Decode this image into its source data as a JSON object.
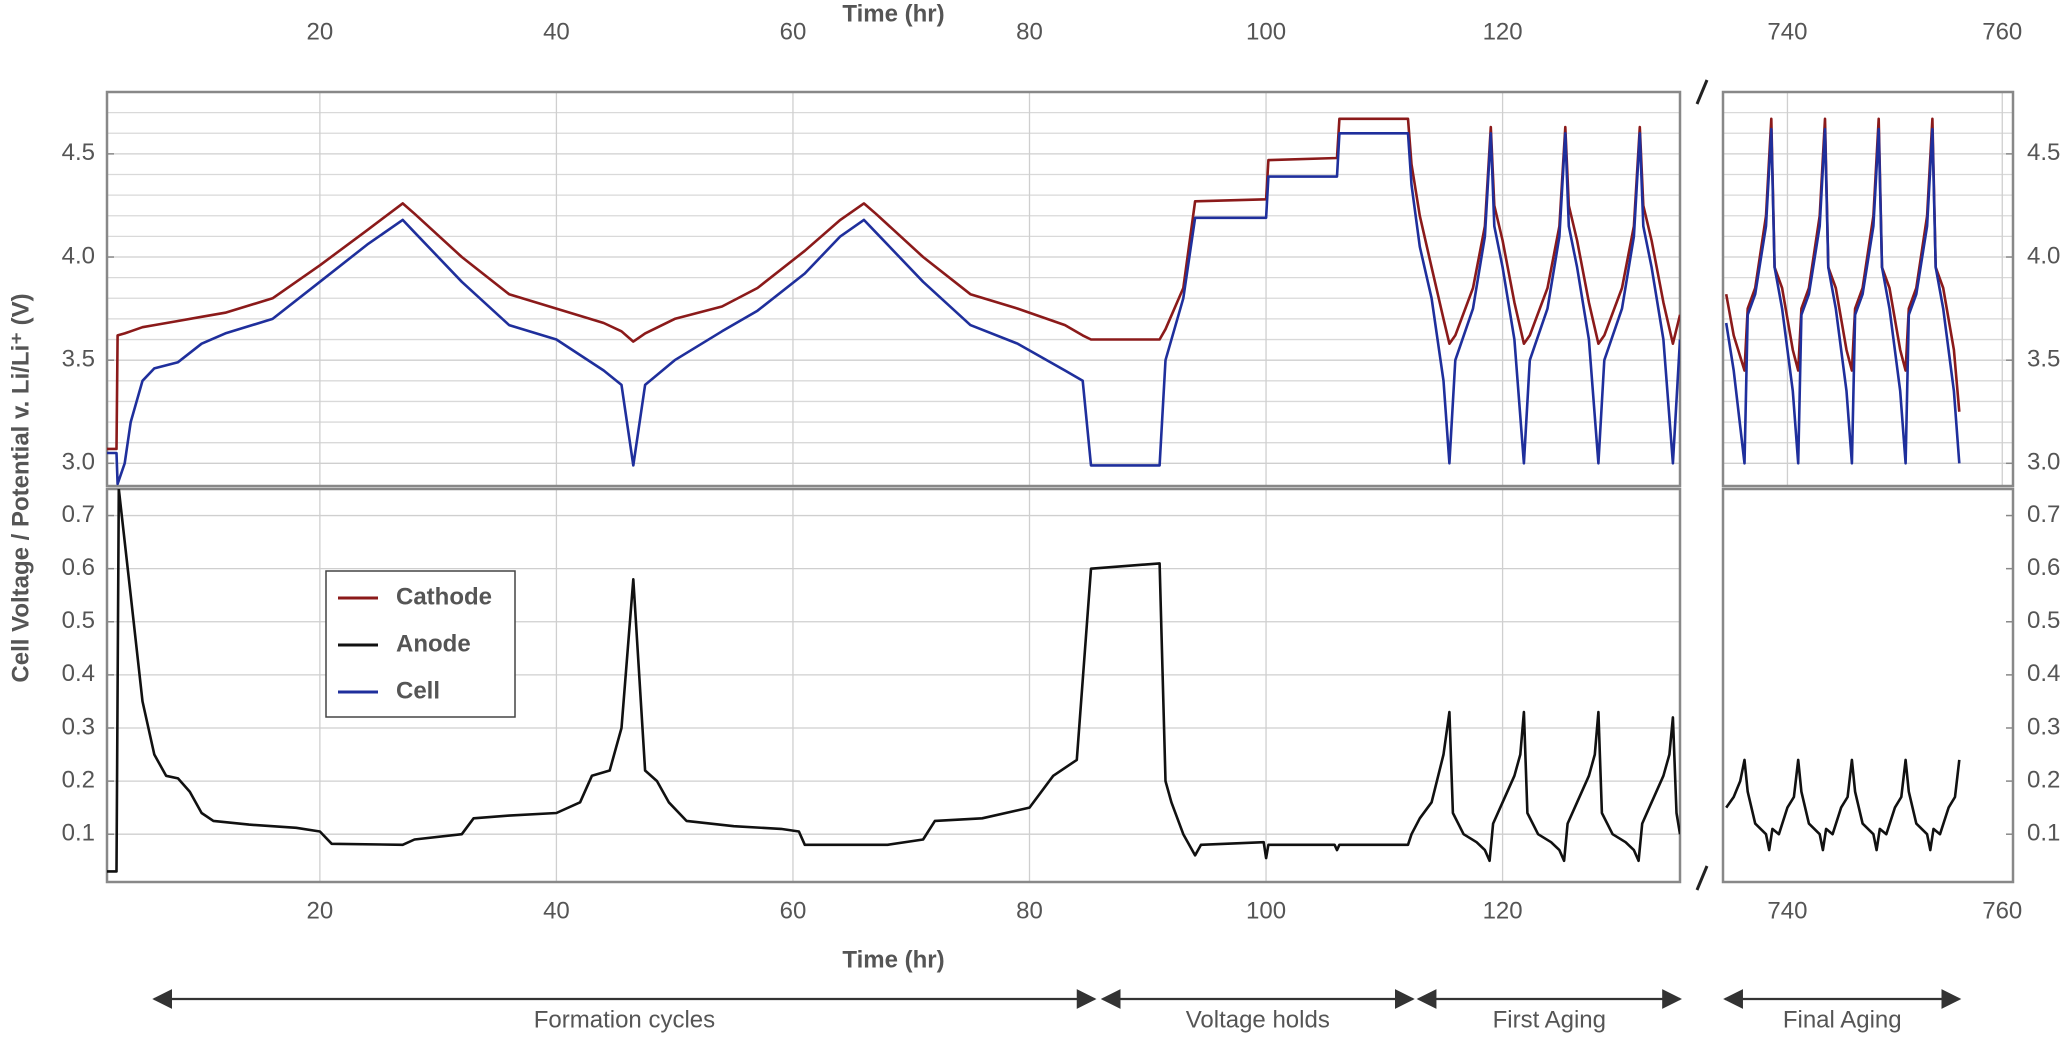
{
  "chart_data": [
    {
      "type": "line",
      "xlabel": "Time (hr)",
      "xaxis_position": "top",
      "yaxis_position": "left",
      "ylabel": "Cell Voltage / Potential v. Li/Li⁺ (V)",
      "xlim": [
        2,
        135
      ],
      "ylim": [
        2.89,
        4.8
      ],
      "xticks": [
        20,
        40,
        60,
        80,
        100,
        120
      ],
      "yticks": [
        {
          "value": 3,
          "label": "3.0"
        },
        3.5,
        {
          "value": 4,
          "label": "4.0"
        },
        4.5
      ],
      "minor_yticks": [
        3.1,
        3.2,
        3.3,
        3.4,
        3.6,
        3.7,
        3.8,
        3.9,
        4.1,
        4.2,
        4.3,
        4.4,
        4.6,
        4.7
      ],
      "grid": true,
      "x": [
        2,
        2.8,
        2.9,
        3.5,
        4,
        5,
        6,
        8,
        10,
        12,
        16,
        20,
        24,
        27,
        28,
        32,
        36,
        40,
        44,
        45.5,
        46.5,
        47.5,
        50,
        54,
        57,
        61,
        64,
        66,
        67,
        71,
        75,
        79,
        83,
        84.5,
        85.2,
        91,
        91.5,
        93,
        94,
        100,
        100.2,
        106,
        106.2,
        112,
        112.3,
        113,
        114,
        115,
        115.5,
        116,
        117.5,
        118.5,
        119,
        119.3,
        120,
        121,
        121.8,
        122.3,
        123.8,
        124.8,
        125.3,
        125.6,
        126.3,
        127.3,
        128.1,
        128.6,
        130.1,
        131.1,
        131.6,
        131.9,
        132.6,
        133.6,
        134.4,
        135
      ],
      "series": [
        {
          "name": "Cathode",
          "color": "#8b1a1a",
          "values": [
            3.07,
            3.07,
            3.62,
            3.63,
            3.64,
            3.66,
            3.67,
            3.69,
            3.71,
            3.73,
            3.8,
            3.96,
            4.13,
            4.26,
            4.21,
            4.0,
            3.82,
            3.75,
            3.68,
            3.64,
            3.59,
            3.63,
            3.7,
            3.76,
            3.85,
            4.03,
            4.18,
            4.26,
            4.21,
            4.0,
            3.82,
            3.75,
            3.67,
            3.62,
            3.6,
            3.6,
            3.65,
            3.85,
            4.27,
            4.28,
            4.47,
            4.48,
            4.67,
            4.67,
            4.45,
            4.2,
            3.95,
            3.7,
            3.58,
            3.62,
            3.85,
            4.15,
            4.63,
            4.25,
            4.08,
            3.78,
            3.58,
            3.62,
            3.85,
            4.15,
            4.63,
            4.25,
            4.08,
            3.78,
            3.58,
            3.62,
            3.85,
            4.15,
            4.63,
            4.25,
            4.08,
            3.78,
            3.58,
            3.72
          ]
        },
        {
          "name": "Cell",
          "color": "#1f2f9c",
          "values": [
            3.05,
            3.05,
            2.9,
            3.0,
            3.2,
            3.4,
            3.46,
            3.49,
            3.58,
            3.63,
            3.7,
            3.88,
            4.06,
            4.18,
            4.12,
            3.88,
            3.67,
            3.6,
            3.45,
            3.38,
            2.99,
            3.38,
            3.5,
            3.64,
            3.74,
            3.92,
            4.1,
            4.18,
            4.12,
            3.88,
            3.67,
            3.58,
            3.45,
            3.4,
            2.99,
            2.99,
            3.5,
            3.8,
            4.19,
            4.19,
            4.39,
            4.39,
            4.6,
            4.6,
            4.35,
            4.05,
            3.8,
            3.4,
            3.0,
            3.5,
            3.75,
            4.1,
            4.6,
            4.15,
            3.95,
            3.6,
            3.0,
            3.5,
            3.75,
            4.1,
            4.6,
            4.15,
            3.95,
            3.6,
            3.0,
            3.5,
            3.75,
            4.1,
            4.6,
            4.15,
            3.95,
            3.6,
            3.0,
            3.6
          ]
        }
      ]
    },
    {
      "type": "line",
      "xlabel": "Time (hr)",
      "xaxis_position": "bottom",
      "yaxis_position": "left",
      "legend": true,
      "xlim": [
        2,
        135
      ],
      "ylim": [
        0.01,
        0.75
      ],
      "xticks": [
        20,
        40,
        60,
        80,
        100,
        120
      ],
      "yticks": [
        0.1,
        0.2,
        0.3,
        0.4,
        0.5,
        0.6,
        0.7
      ],
      "grid": true,
      "x": [
        2,
        2.4,
        2.8,
        3,
        4,
        5,
        6,
        7,
        8,
        9,
        10,
        11,
        14,
        18,
        20,
        21,
        27,
        28,
        32,
        33,
        36,
        40,
        42,
        43,
        44.5,
        45.5,
        46.5,
        47.5,
        48.5,
        49.5,
        51,
        55,
        59,
        60.5,
        61,
        68,
        71,
        72,
        76,
        80,
        82,
        84,
        85.2,
        91,
        91.5,
        92,
        93,
        94,
        94.5,
        99.8,
        100,
        100.2,
        105.8,
        106,
        106.2,
        112,
        112.3,
        113,
        114,
        115,
        115.5,
        115.8,
        116.7,
        117.8,
        118.5,
        118.9,
        119.2,
        120,
        121,
        121.5,
        121.8,
        122.1,
        123,
        124.1,
        124.8,
        125.2,
        125.5,
        126.3,
        127.3,
        127.8,
        128.1,
        128.4,
        129.3,
        130.4,
        131.1,
        131.5,
        131.8,
        132.6,
        133.6,
        134.1,
        134.4,
        134.7,
        135
      ],
      "series": [
        {
          "name": "Anode",
          "color": "#111111",
          "values": [
            0.03,
            0.03,
            0.03,
            0.75,
            0.55,
            0.35,
            0.25,
            0.21,
            0.205,
            0.18,
            0.14,
            0.125,
            0.118,
            0.112,
            0.105,
            0.082,
            0.08,
            0.09,
            0.1,
            0.13,
            0.135,
            0.14,
            0.16,
            0.21,
            0.22,
            0.3,
            0.58,
            0.22,
            0.2,
            0.16,
            0.125,
            0.115,
            0.11,
            0.105,
            0.08,
            0.08,
            0.09,
            0.125,
            0.13,
            0.15,
            0.21,
            0.24,
            0.6,
            0.61,
            0.2,
            0.16,
            0.1,
            0.06,
            0.08,
            0.085,
            0.055,
            0.08,
            0.08,
            0.07,
            0.08,
            0.08,
            0.1,
            0.13,
            0.16,
            0.25,
            0.33,
            0.14,
            0.1,
            0.085,
            0.07,
            0.05,
            0.12,
            0.16,
            0.21,
            0.25,
            0.33,
            0.14,
            0.1,
            0.085,
            0.07,
            0.05,
            0.12,
            0.16,
            0.21,
            0.25,
            0.33,
            0.14,
            0.1,
            0.085,
            0.07,
            0.05,
            0.12,
            0.16,
            0.21,
            0.25,
            0.32,
            0.14,
            0.1
          ]
        }
      ],
      "annotations": [
        {
          "text": "Formation cycles",
          "x": [
            6,
            85.5
          ]
        },
        {
          "text": "Voltage holds",
          "x": [
            86.2,
            112.4
          ]
        },
        {
          "text": "First Aging",
          "x": [
            112.9,
            135
          ]
        }
      ]
    },
    {
      "type": "line",
      "xaxis_position": "top",
      "yaxis_position": "right",
      "xlim": [
        734,
        761
      ],
      "ylim": [
        2.89,
        4.8
      ],
      "xticks": [
        740,
        760
      ],
      "yticks": [
        {
          "value": 3,
          "label": "3.0"
        },
        3.5,
        {
          "value": 4,
          "label": "4.0"
        },
        4.5
      ],
      "minor_yticks": [
        3.1,
        3.2,
        3.3,
        3.4,
        3.6,
        3.7,
        3.8,
        3.9,
        4.1,
        4.2,
        4.3,
        4.4,
        4.6,
        4.7
      ],
      "grid": true,
      "x": [
        734.3,
        735,
        736,
        736.3,
        737,
        738,
        738.5,
        738.8,
        739.5,
        740.5,
        741,
        741.3,
        742,
        743,
        743.5,
        743.8,
        744.5,
        745.5,
        746,
        746.3,
        747,
        748,
        748.5,
        748.8,
        749.5,
        750.5,
        751,
        751.3,
        752,
        753,
        753.5,
        753.8,
        754.5,
        755.5,
        756
      ],
      "series": [
        {
          "color": "#8b1a1a",
          "values": [
            3.82,
            3.62,
            3.45,
            3.75,
            3.85,
            4.2,
            4.67,
            3.95,
            3.85,
            3.55,
            3.45,
            3.75,
            3.85,
            4.2,
            4.67,
            3.95,
            3.85,
            3.55,
            3.45,
            3.75,
            3.85,
            4.2,
            4.67,
            3.95,
            3.85,
            3.55,
            3.45,
            3.75,
            3.85,
            4.2,
            4.67,
            3.95,
            3.85,
            3.55,
            3.25
          ]
        },
        {
          "color": "#1f2f9c",
          "values": [
            3.68,
            3.45,
            3.0,
            3.72,
            3.82,
            4.15,
            4.62,
            3.95,
            3.75,
            3.35,
            3.0,
            3.72,
            3.82,
            4.15,
            4.62,
            3.95,
            3.75,
            3.35,
            3.0,
            3.72,
            3.82,
            4.15,
            4.62,
            3.95,
            3.75,
            3.35,
            3.0,
            3.72,
            3.82,
            4.15,
            4.62,
            3.95,
            3.75,
            3.35,
            3.0
          ]
        }
      ]
    },
    {
      "type": "line",
      "xaxis_position": "bottom",
      "yaxis_position": "right",
      "xlim": [
        734,
        761
      ],
      "ylim": [
        0.01,
        0.75
      ],
      "xticks": [
        740,
        760
      ],
      "yticks": [
        0.1,
        0.2,
        0.3,
        0.4,
        0.5,
        0.6,
        0.7
      ],
      "grid": false,
      "x": [
        734.3,
        735,
        735.6,
        736,
        736.3,
        737,
        738,
        738.3,
        738.6,
        739.2,
        740,
        740.6,
        741,
        741.3,
        742,
        743,
        743.3,
        743.6,
        744.2,
        745,
        745.6,
        746,
        746.3,
        747,
        748,
        748.3,
        748.6,
        749.2,
        750,
        750.6,
        751,
        751.3,
        752,
        753,
        753.3,
        753.6,
        754.2,
        755,
        755.6,
        756
      ],
      "series": [
        {
          "color": "#111111",
          "values": [
            0.15,
            0.17,
            0.2,
            0.24,
            0.18,
            0.12,
            0.1,
            0.07,
            0.11,
            0.1,
            0.15,
            0.17,
            0.24,
            0.18,
            0.12,
            0.1,
            0.07,
            0.11,
            0.1,
            0.15,
            0.17,
            0.24,
            0.18,
            0.12,
            0.1,
            0.07,
            0.11,
            0.1,
            0.15,
            0.17,
            0.24,
            0.18,
            0.12,
            0.1,
            0.07,
            0.11,
            0.1,
            0.15,
            0.17,
            0.24
          ]
        }
      ],
      "annotations": [
        {
          "text": "Final Aging",
          "x": [
            734.2,
            756
          ]
        }
      ]
    }
  ]
}
